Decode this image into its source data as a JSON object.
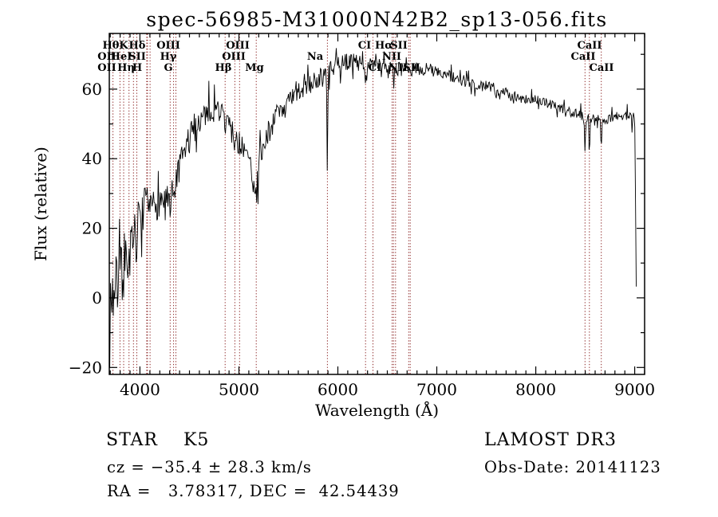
{
  "footer": {
    "class_label": "STAR    K5",
    "cz": "cz = −35.4 ± 28.3 km/s",
    "radec": "RA =   3.78317, DEC =  42.54439",
    "survey": "LAMOST DR3",
    "obs_date": "Obs-Date: 20141123"
  },
  "chart_data": {
    "type": "line",
    "title": "spec-56985-M31000N42B2_sp13-056.fits",
    "xlabel": "Wavelength (Å)",
    "ylabel": "Flux (relative)",
    "xlim": [
      3690,
      9100
    ],
    "ylim": [
      -22,
      76
    ],
    "xticks": [
      4000,
      5000,
      6000,
      7000,
      8000,
      9000
    ],
    "x_minor_step": 100,
    "yticks": [
      -20,
      0,
      20,
      40,
      60
    ],
    "y_minor_step": 10,
    "grid": false,
    "legend": null,
    "line_color": "#000000",
    "marker_line_color": "#8B2323",
    "spectral_line_wavelengths": [
      3727,
      3798,
      3835,
      3889,
      3934,
      3968,
      4068,
      4076,
      4102,
      4305,
      4340,
      4363,
      4861,
      4959,
      5007,
      5175,
      5894,
      6280,
      6355,
      6548,
      6563,
      6583,
      6716,
      6731,
      8498,
      8542,
      8662
    ],
    "line_labels": [
      {
        "text": "Hθ",
        "at": 3706,
        "row": 1
      },
      {
        "text": "K",
        "at": 3835,
        "row": 1
      },
      {
        "text": "Hδ",
        "at": 3972,
        "row": 1
      },
      {
        "text": "OIII",
        "at": 4287,
        "row": 1
      },
      {
        "text": "OIII",
        "at": 4988,
        "row": 1
      },
      {
        "text": "CI",
        "at": 6270,
        "row": 1
      },
      {
        "text": "Hα",
        "at": 6464,
        "row": 1
      },
      {
        "text": "SII",
        "at": 6617,
        "row": 1
      },
      {
        "text": "CaII",
        "at": 8544,
        "row": 1
      },
      {
        "text": "OII",
        "at": 3666,
        "row": 2
      },
      {
        "text": "HeI",
        "at": 3811,
        "row": 2
      },
      {
        "text": "SII",
        "at": 3972,
        "row": 2
      },
      {
        "text": "Hγ",
        "at": 4287,
        "row": 2
      },
      {
        "text": "OIII",
        "at": 4948,
        "row": 2
      },
      {
        "text": "Na",
        "at": 5770,
        "row": 2
      },
      {
        "text": "NII",
        "at": 6544,
        "row": 2
      },
      {
        "text": "CaII",
        "at": 8479,
        "row": 2
      },
      {
        "text": "OII",
        "at": 3666,
        "row": 3
      },
      {
        "text": "Hη",
        "at": 3859,
        "row": 3
      },
      {
        "text": "H",
        "at": 3972,
        "row": 3
      },
      {
        "text": "G",
        "at": 4287,
        "row": 3
      },
      {
        "text": "Hβ",
        "at": 4843,
        "row": 3
      },
      {
        "text": "Mg",
        "at": 5157,
        "row": 3
      },
      {
        "text": "CI",
        "at": 6375,
        "row": 3
      },
      {
        "text": "NII",
        "at": 6609,
        "row": 3
      },
      {
        "text": "SII",
        "at": 6746,
        "row": 3
      },
      {
        "text": "CaII",
        "at": 8665,
        "row": 3
      }
    ],
    "continuum_points": [
      [
        3695,
        0
      ],
      [
        3720,
        1
      ],
      [
        3760,
        3
      ],
      [
        3800,
        6
      ],
      [
        3850,
        9
      ],
      [
        3900,
        13
      ],
      [
        3950,
        19
      ],
      [
        4000,
        24
      ],
      [
        4050,
        26
      ],
      [
        4100,
        26
      ],
      [
        4150,
        27
      ],
      [
        4200,
        28
      ],
      [
        4250,
        28
      ],
      [
        4310,
        28
      ],
      [
        4350,
        32
      ],
      [
        4400,
        36
      ],
      [
        4450,
        42
      ],
      [
        4500,
        46
      ],
      [
        4550,
        49
      ],
      [
        4600,
        51
      ],
      [
        4650,
        53
      ],
      [
        4700,
        54
      ],
      [
        4800,
        54
      ],
      [
        4861,
        52
      ],
      [
        4900,
        50
      ],
      [
        4950,
        46
      ],
      [
        5000,
        44
      ],
      [
        5050,
        42
      ],
      [
        5100,
        39
      ],
      [
        5140,
        35
      ],
      [
        5175,
        30
      ],
      [
        5210,
        38
      ],
      [
        5250,
        44
      ],
      [
        5300,
        48
      ],
      [
        5350,
        51
      ],
      [
        5400,
        53
      ],
      [
        5450,
        54
      ],
      [
        5500,
        56
      ],
      [
        5600,
        59
      ],
      [
        5700,
        61
      ],
      [
        5800,
        63
      ],
      [
        5900,
        65
      ],
      [
        6000,
        67
      ],
      [
        6100,
        68
      ],
      [
        6200,
        68
      ],
      [
        6300,
        67
      ],
      [
        6400,
        67
      ],
      [
        6500,
        66
      ],
      [
        6600,
        66
      ],
      [
        6700,
        65
      ],
      [
        6800,
        66
      ],
      [
        6900,
        66
      ],
      [
        7000,
        65
      ],
      [
        7100,
        64
      ],
      [
        7200,
        63
      ],
      [
        7300,
        62
      ],
      [
        7400,
        61
      ],
      [
        7500,
        61
      ],
      [
        7600,
        60
      ],
      [
        7700,
        59
      ],
      [
        7800,
        58
      ],
      [
        7900,
        57
      ],
      [
        8000,
        57
      ],
      [
        8100,
        56
      ],
      [
        8200,
        55
      ],
      [
        8300,
        54
      ],
      [
        8400,
        53
      ],
      [
        8500,
        52
      ],
      [
        8600,
        51
      ],
      [
        8700,
        51
      ],
      [
        8800,
        52
      ],
      [
        8900,
        52
      ],
      [
        8960,
        53
      ],
      [
        8990,
        54
      ],
      [
        9000,
        52
      ],
      [
        9006,
        40
      ],
      [
        9012,
        5
      ],
      [
        9018,
        3
      ]
    ],
    "absorption_features": [
      [
        3934,
        7,
        6
      ],
      [
        3968,
        7,
        6
      ],
      [
        4102,
        4,
        5
      ],
      [
        4305,
        4,
        10
      ],
      [
        4340,
        3,
        5
      ],
      [
        4861,
        4,
        5
      ],
      [
        5894,
        31,
        4
      ],
      [
        6280,
        6,
        3
      ],
      [
        6355,
        3,
        3
      ],
      [
        6563,
        7,
        4
      ],
      [
        6867,
        3,
        4
      ],
      [
        7600,
        3,
        5
      ],
      [
        8498,
        9,
        4
      ],
      [
        8542,
        10,
        4
      ],
      [
        8662,
        9,
        4
      ],
      [
        8975,
        6,
        4
      ]
    ],
    "noise_profile": [
      [
        3695,
        10
      ],
      [
        3800,
        9
      ],
      [
        3900,
        7
      ],
      [
        4000,
        6
      ],
      [
        4200,
        5
      ],
      [
        4400,
        5
      ],
      [
        4600,
        4
      ],
      [
        4800,
        3.5
      ],
      [
        5000,
        4
      ],
      [
        5200,
        4.5
      ],
      [
        5350,
        3.5
      ],
      [
        5500,
        3
      ],
      [
        5700,
        2.8
      ],
      [
        6000,
        2.6
      ],
      [
        6300,
        2.2
      ],
      [
        6600,
        2
      ],
      [
        7000,
        1.9
      ],
      [
        7400,
        1.7
      ],
      [
        7800,
        1.5
      ],
      [
        8200,
        1.4
      ],
      [
        8600,
        1.6
      ],
      [
        8900,
        1.5
      ],
      [
        9100,
        1
      ]
    ],
    "noise_seed": 7,
    "sample_step_angstrom": 7
  }
}
